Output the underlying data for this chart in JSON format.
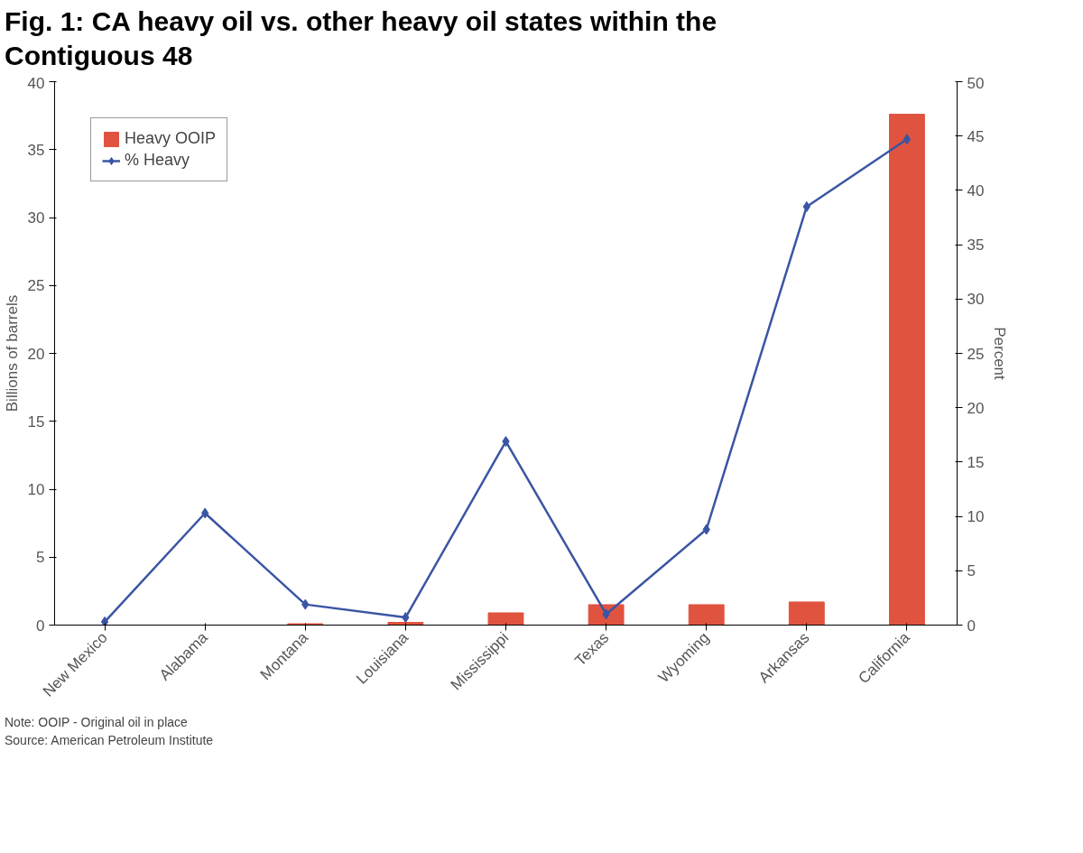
{
  "chart_data": {
    "type": "bar",
    "title": "Fig. 1: CA heavy oil vs. other heavy oil states within the Contiguous 48",
    "categories": [
      "New Mexico",
      "Alabama",
      "Montana",
      "Louisiana",
      "Mississippi",
      "Texas",
      "Wyoming",
      "Arkansas",
      "California"
    ],
    "series": [
      {
        "name": "Heavy OOIP",
        "color": "#e0533f",
        "values": [
          0,
          0,
          0.1,
          0.2,
          0.9,
          1.5,
          1.5,
          1.7,
          37.6
        ]
      },
      {
        "name": "% Heavy",
        "type": "line",
        "axis": "y2",
        "color": "#3a55a4",
        "marker": "diamond",
        "values": [
          0.3,
          10.3,
          1.9,
          0.7,
          16.9,
          1.0,
          8.8,
          38.5,
          44.7
        ]
      }
    ],
    "ylabel": "Billions of barrels",
    "y2label": "Percent",
    "ylim": [
      0,
      40
    ],
    "yticks": [
      0,
      5,
      10,
      15,
      20,
      25,
      30,
      35,
      40
    ],
    "y2lim": [
      0,
      50
    ],
    "y2ticks": [
      0,
      5,
      10,
      15,
      20,
      25,
      30,
      35,
      40,
      45,
      50
    ],
    "legend": "top left",
    "grid": false,
    "annotations": [
      "Note: OOIP - Original oil in place",
      "Source: American Petroleum Institute"
    ]
  }
}
